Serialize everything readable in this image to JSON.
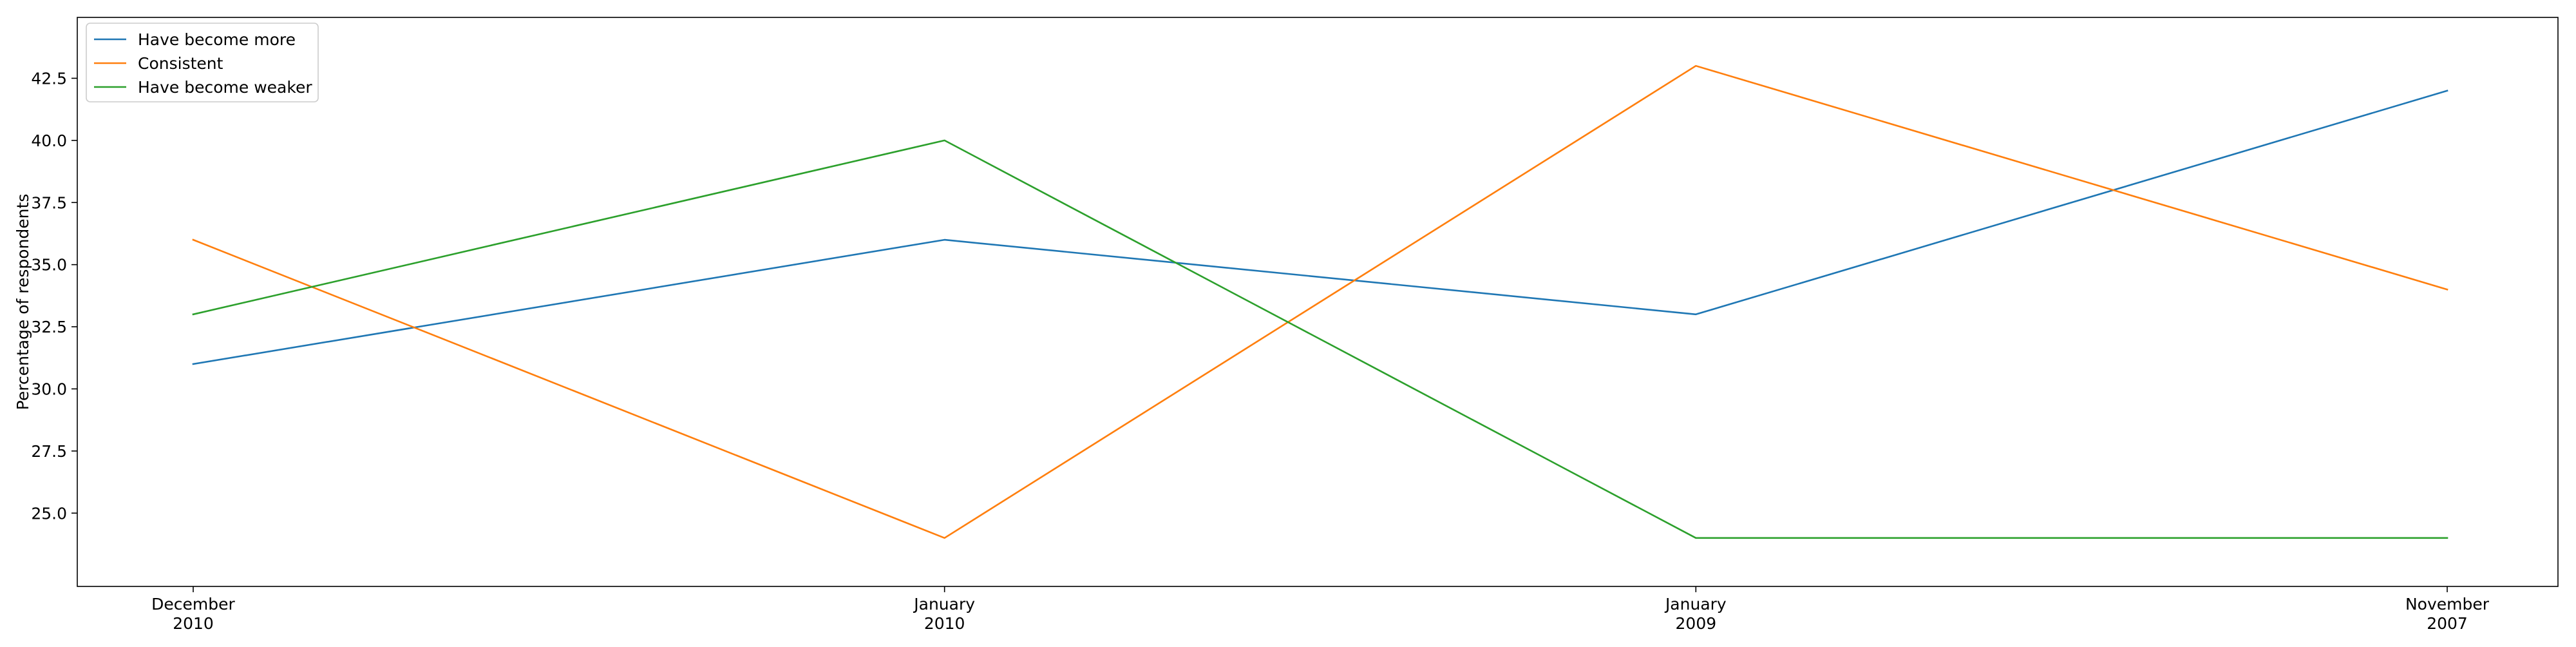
{
  "chart_data": {
    "type": "line",
    "title": "",
    "xlabel": "",
    "ylabel": "Percentage of respondents",
    "categories": [
      "December\n2010",
      "January\n2010",
      "January\n2009",
      "November\n2007"
    ],
    "series": [
      {
        "name": "Have become more",
        "color": "#1f77b4",
        "values": [
          31,
          36,
          33,
          42
        ]
      },
      {
        "name": "Consistent",
        "color": "#ff7f0e",
        "values": [
          36,
          24,
          43,
          34
        ]
      },
      {
        "name": "Have become weaker",
        "color": "#2ca02c",
        "values": [
          33,
          40,
          24,
          24
        ]
      }
    ],
    "yticks": [
      25.0,
      27.5,
      30.0,
      32.5,
      35.0,
      37.5,
      40.0,
      42.5
    ],
    "ylim": [
      22.05,
      44.95
    ],
    "grid": false,
    "legend_position": "top-left"
  }
}
